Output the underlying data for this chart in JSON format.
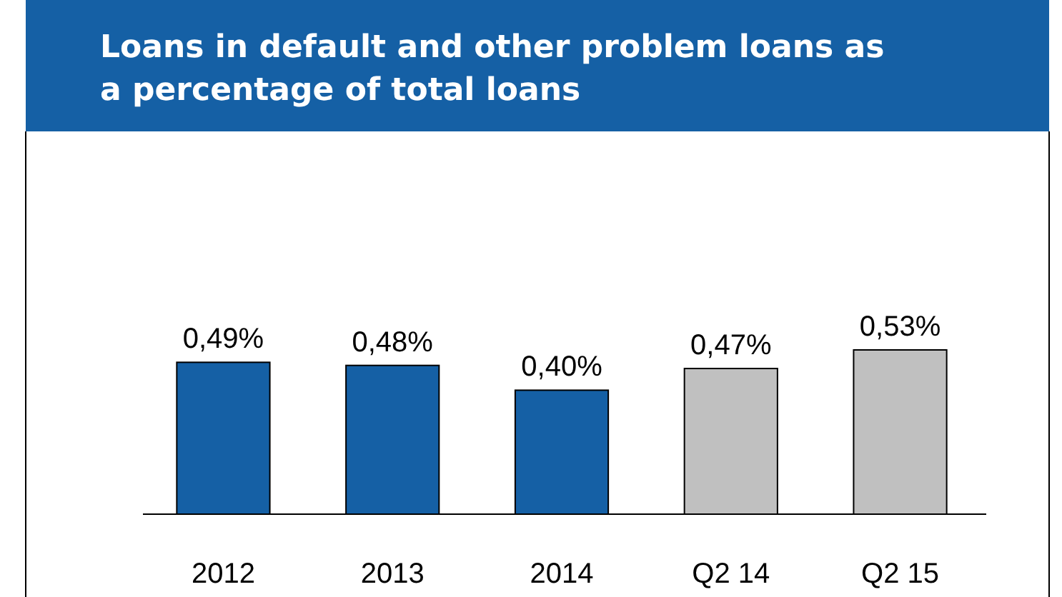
{
  "chart_data": {
    "type": "bar",
    "title": "Loans in default and other problem loans as a percentage of total loans",
    "categories": [
      "2012",
      "2013",
      "2014",
      "Q2 14",
      "Q2 15"
    ],
    "values": [
      0.49,
      0.48,
      0.4,
      0.47,
      0.53
    ],
    "value_labels": [
      "0,49%",
      "0,48%",
      "0,40%",
      "0,47%",
      "0,53%"
    ],
    "colors": [
      "#1560a5",
      "#1560a5",
      "#1560a5",
      "#c0c0c0",
      "#c0c0c0"
    ]
  }
}
